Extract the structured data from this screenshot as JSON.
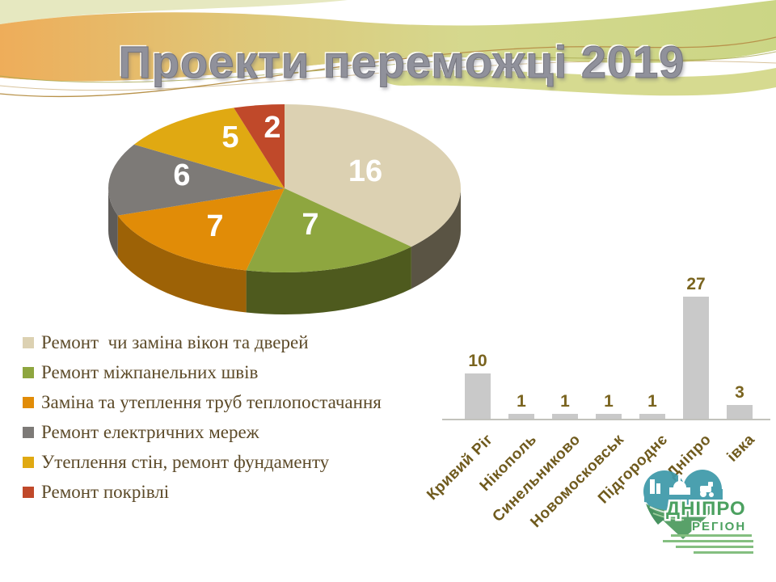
{
  "slide_title": "Проекти переможці 2019",
  "colors": {
    "title_text": "#90919b",
    "legend_text": "#5c4a28",
    "bar_fill": "#c9c9c9",
    "bar_value_label": "#7a641f",
    "category_label": "#6f5a1d",
    "axis_line": "#c2c2bc",
    "wave_orange": "#eead5a",
    "wave_green": "#cbd685",
    "logo_green": "#3f9a55",
    "logo_teal": "#3e99a9"
  },
  "chart_data": [
    {
      "type": "pie",
      "title": "",
      "effect": "3d",
      "values": [
        16,
        7,
        7,
        6,
        5,
        2
      ],
      "labels": [
        "Ремонт  чи заміна вікон та дверей",
        "Ремонт міжпанельних швів",
        "Заміна та утеплення труб теплопостачання",
        "Ремонт електричних мереж",
        "Утеплення стін, ремонт фундаменту",
        "Ремонт покрівлі"
      ],
      "colors": [
        "#dcd1b2",
        "#8ea63f",
        "#e18c07",
        "#7d7a77",
        "#e0a912",
        "#c0492a"
      ],
      "side_colors": [
        "#5a5444",
        "#4e5a1e",
        "#9d6206",
        "#5e5b58",
        "#9a7408",
        "#8a3318"
      ],
      "value_label_color": "#ffffff",
      "legend_position": "bottom-left"
    },
    {
      "type": "bar",
      "categories": [
        "Кривий Ріг",
        "Нікополь",
        "Синельниково",
        "Новомосковськ",
        "Підгороднє",
        "Дніпро",
        "івка"
      ],
      "values": [
        10,
        1,
        1,
        1,
        1,
        27,
        3
      ],
      "ylim": [
        0,
        30
      ],
      "grid": false,
      "bar_color": "#c9c9c9",
      "value_labels_shown": true,
      "legend_position": "none"
    }
  ],
  "logo": {
    "line1": "ДНІПРО",
    "line2": "РЕГІОН"
  }
}
